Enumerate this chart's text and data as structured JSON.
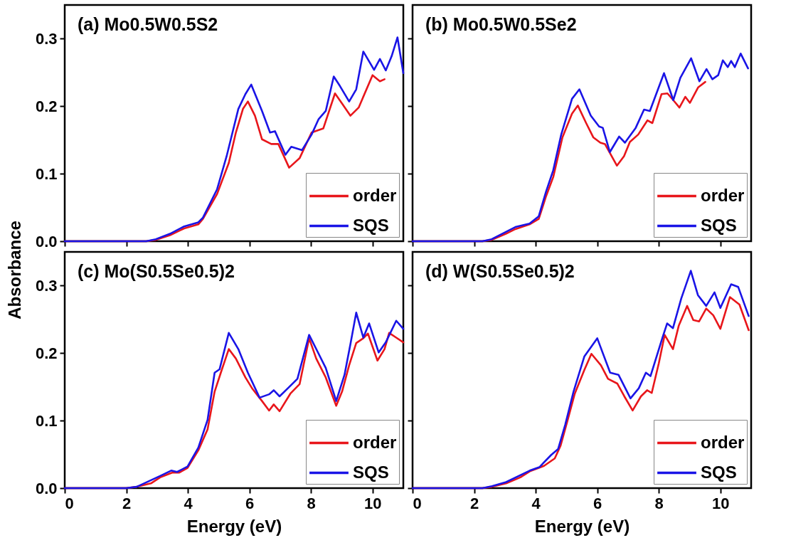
{
  "chart_data": [
    {
      "type": "line",
      "title": "(a) Mo0.5W0.5S2",
      "ylabel": "Absorbance",
      "xlim": [
        0,
        11
      ],
      "ylim": [
        0,
        0.35
      ],
      "xticks": [
        0,
        2,
        4,
        6,
        8,
        10
      ],
      "yticks": [
        {
          "value": 0,
          "label": "0.0"
        },
        0.1,
        0.2,
        0.3
      ],
      "tick_labels": "y",
      "legend": "bottom right",
      "series": [
        {
          "name": "order",
          "color": "#e8161b",
          "x": [
            0,
            2.65,
            2.96,
            3.42,
            3.88,
            4.34,
            4.49,
            4.95,
            5.33,
            5.56,
            5.79,
            5.95,
            6.18,
            6.41,
            6.71,
            6.94,
            7.29,
            7.63,
            8.02,
            8.4,
            8.78,
            9.01,
            9.28,
            9.55,
            10.0,
            10.24,
            10.39
          ],
          "values": [
            0,
            0,
            0.002,
            0.009,
            0.019,
            0.025,
            0.033,
            0.07,
            0.116,
            0.161,
            0.196,
            0.207,
            0.186,
            0.151,
            0.144,
            0.144,
            0.109,
            0.123,
            0.161,
            0.167,
            0.219,
            0.204,
            0.186,
            0.198,
            0.246,
            0.237,
            0.24
          ]
        },
        {
          "name": "SQS",
          "color": "#1a14e6",
          "x": [
            0,
            2.65,
            2.96,
            3.42,
            3.88,
            4.34,
            4.49,
            4.95,
            5.26,
            5.64,
            5.87,
            6.06,
            6.41,
            6.67,
            6.83,
            7.17,
            7.36,
            7.71,
            8.02,
            8.25,
            8.48,
            8.74,
            8.94,
            9.24,
            9.47,
            9.7,
            10.05,
            10.24,
            10.43,
            10.62,
            10.81,
            11.0
          ],
          "values": [
            0,
            0,
            0.003,
            0.011,
            0.022,
            0.028,
            0.035,
            0.077,
            0.126,
            0.196,
            0.218,
            0.232,
            0.193,
            0.161,
            0.163,
            0.128,
            0.14,
            0.135,
            0.158,
            0.181,
            0.193,
            0.244,
            0.23,
            0.207,
            0.225,
            0.281,
            0.254,
            0.27,
            0.253,
            0.274,
            0.302,
            0.249
          ]
        }
      ]
    },
    {
      "type": "line",
      "title": "(b) Mo0.5W0.5Se2",
      "xlim": [
        0,
        11
      ],
      "ylim": [
        0,
        0.35
      ],
      "xticks": [
        0,
        2,
        4,
        6,
        8,
        10
      ],
      "yticks": [
        0,
        0.1,
        0.2,
        0.3
      ],
      "tick_labels": false,
      "legend": "bottom right",
      "series": [
        {
          "name": "order",
          "color": "#e8161b",
          "x": [
            0,
            2.27,
            2.57,
            3.03,
            3.34,
            3.8,
            4.1,
            4.34,
            4.57,
            4.87,
            5.18,
            5.37,
            5.64,
            5.87,
            6.1,
            6.25,
            6.64,
            6.87,
            7.06,
            7.33,
            7.63,
            7.79,
            8.09,
            8.28,
            8.47,
            8.67,
            8.86,
            9.01,
            9.28,
            9.51
          ],
          "values": [
            0,
            0,
            0.002,
            0.011,
            0.018,
            0.025,
            0.033,
            0.067,
            0.095,
            0.154,
            0.189,
            0.201,
            0.175,
            0.154,
            0.146,
            0.144,
            0.112,
            0.126,
            0.147,
            0.158,
            0.179,
            0.175,
            0.218,
            0.219,
            0.209,
            0.198,
            0.214,
            0.205,
            0.228,
            0.236
          ]
        },
        {
          "name": "SQS",
          "color": "#1a14e6",
          "x": [
            0,
            2.27,
            2.57,
            3.34,
            3.8,
            4.1,
            4.34,
            4.57,
            4.83,
            5.18,
            5.42,
            5.79,
            6.06,
            6.18,
            6.41,
            6.71,
            6.9,
            7.25,
            7.52,
            7.71,
            8.17,
            8.47,
            8.7,
            9.05,
            9.32,
            9.55,
            9.74,
            9.93,
            10.08,
            10.24,
            10.35,
            10.47,
            10.66,
            10.9
          ],
          "values": [
            0,
            0,
            0.003,
            0.021,
            0.026,
            0.037,
            0.074,
            0.105,
            0.158,
            0.211,
            0.225,
            0.186,
            0.17,
            0.168,
            0.132,
            0.155,
            0.146,
            0.168,
            0.195,
            0.193,
            0.249,
            0.209,
            0.242,
            0.271,
            0.237,
            0.255,
            0.24,
            0.246,
            0.268,
            0.258,
            0.267,
            0.258,
            0.278,
            0.256
          ]
        }
      ]
    },
    {
      "type": "line",
      "title": "(c) Mo(S0.5Se0.5)2",
      "xlabel": "Energy (eV)",
      "xlim": [
        0,
        11
      ],
      "ylim": [
        0,
        0.35
      ],
      "xticks": [
        0,
        2,
        4,
        6,
        8,
        10
      ],
      "yticks": [
        {
          "value": 0,
          "label": "0.0"
        },
        0.1,
        0.2,
        0.3
      ],
      "legend": "bottom right",
      "series": [
        {
          "name": "order",
          "color": "#e8161b",
          "x": [
            0,
            2.0,
            2.34,
            2.8,
            3.1,
            3.49,
            3.72,
            3.99,
            4.34,
            4.64,
            4.87,
            5.1,
            5.33,
            5.56,
            5.87,
            6.1,
            6.41,
            6.64,
            6.79,
            6.98,
            7.33,
            7.63,
            7.94,
            8.17,
            8.48,
            8.82,
            9.01,
            9.24,
            9.47,
            9.7,
            9.85,
            10.16,
            10.39,
            10.54,
            10.77,
            11.0
          ],
          "values": [
            0,
            0,
            0.002,
            0.007,
            0.016,
            0.023,
            0.023,
            0.03,
            0.056,
            0.087,
            0.143,
            0.175,
            0.206,
            0.192,
            0.164,
            0.147,
            0.129,
            0.115,
            0.124,
            0.114,
            0.14,
            0.154,
            0.222,
            0.192,
            0.164,
            0.122,
            0.143,
            0.182,
            0.215,
            0.222,
            0.229,
            0.189,
            0.206,
            0.23,
            0.223,
            0.216
          ]
        },
        {
          "name": "SQS",
          "color": "#1a14e6",
          "x": [
            0,
            2.0,
            2.34,
            3.1,
            3.46,
            3.65,
            3.99,
            4.34,
            4.64,
            4.87,
            5.03,
            5.33,
            5.64,
            5.95,
            6.33,
            6.64,
            6.79,
            6.98,
            7.25,
            7.56,
            7.94,
            8.25,
            8.48,
            8.82,
            9.09,
            9.28,
            9.47,
            9.7,
            9.89,
            10.2,
            10.43,
            10.77,
            11.0
          ],
          "values": [
            0,
            0,
            0.002,
            0.018,
            0.026,
            0.024,
            0.032,
            0.06,
            0.101,
            0.171,
            0.176,
            0.23,
            0.206,
            0.171,
            0.134,
            0.139,
            0.145,
            0.136,
            0.148,
            0.162,
            0.227,
            0.199,
            0.178,
            0.129,
            0.168,
            0.213,
            0.26,
            0.223,
            0.244,
            0.201,
            0.216,
            0.248,
            0.236
          ]
        }
      ]
    },
    {
      "type": "line",
      "title": "(d) W(S0.5Se0.5)2",
      "xlabel": "Energy (eV)",
      "xlim": [
        0,
        11
      ],
      "ylim": [
        0,
        0.35
      ],
      "xticks": [
        0,
        2,
        4,
        6,
        8,
        10
      ],
      "yticks": [
        0,
        0.1,
        0.2,
        0.3
      ],
      "tick_labels": "x",
      "legend": "bottom right",
      "series": [
        {
          "name": "order",
          "color": "#e8161b",
          "x": [
            0,
            2.27,
            2.58,
            3.04,
            3.5,
            3.81,
            4.27,
            4.62,
            4.81,
            5.04,
            5.27,
            5.58,
            5.81,
            6.12,
            6.35,
            6.65,
            6.88,
            7.15,
            7.42,
            7.62,
            7.77,
            8.0,
            8.19,
            8.46,
            8.65,
            8.92,
            9.12,
            9.31,
            9.54,
            9.77,
            10.0,
            10.31,
            10.62,
            10.92
          ],
          "values": [
            0,
            0,
            0.002,
            0.007,
            0.016,
            0.025,
            0.033,
            0.044,
            0.063,
            0.101,
            0.14,
            0.175,
            0.199,
            0.182,
            0.162,
            0.155,
            0.136,
            0.115,
            0.136,
            0.145,
            0.141,
            0.185,
            0.227,
            0.206,
            0.241,
            0.27,
            0.249,
            0.247,
            0.266,
            0.256,
            0.236,
            0.283,
            0.272,
            0.234
          ]
        },
        {
          "name": "SQS",
          "color": "#1a14e6",
          "x": [
            0,
            2.27,
            2.58,
            3.04,
            3.81,
            4.12,
            4.5,
            4.73,
            4.96,
            5.23,
            5.58,
            6.0,
            6.42,
            6.69,
            7.08,
            7.35,
            7.58,
            7.73,
            8.12,
            8.27,
            8.46,
            8.73,
            9.04,
            9.27,
            9.54,
            9.81,
            10.0,
            10.35,
            10.58,
            10.92
          ],
          "values": [
            0,
            0,
            0.003,
            0.009,
            0.026,
            0.031,
            0.049,
            0.058,
            0.094,
            0.143,
            0.195,
            0.222,
            0.171,
            0.168,
            0.133,
            0.148,
            0.171,
            0.166,
            0.223,
            0.244,
            0.237,
            0.281,
            0.322,
            0.286,
            0.27,
            0.29,
            0.267,
            0.302,
            0.298,
            0.255
          ]
        }
      ]
    }
  ]
}
